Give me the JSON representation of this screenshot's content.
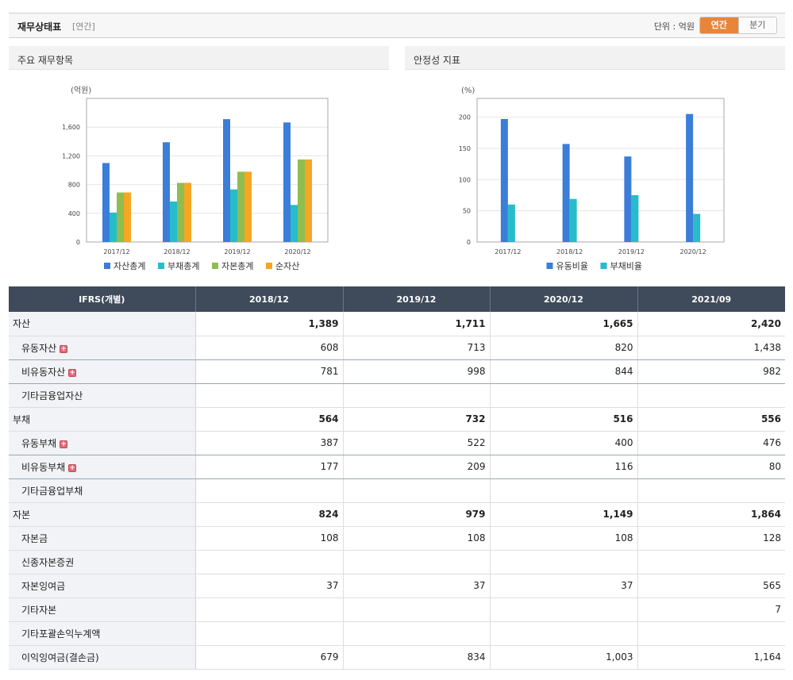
{
  "header": {
    "title": "재무상태표",
    "subtitle": "[연간]",
    "unit": "단위 : 억원",
    "toggle_annual": "연간",
    "toggle_quarter": "분기"
  },
  "charts": {
    "left_title": "주요 재무항목",
    "right_title": "안정성 지표"
  },
  "chart_data": [
    {
      "type": "bar",
      "title": "주요 재무항목",
      "ylabel": "(억원)",
      "categories": [
        "2017/12",
        "2018/12",
        "2019/12",
        "2020/12"
      ],
      "ylim": [
        0,
        2000
      ],
      "yticks": [
        0,
        400,
        800,
        1200,
        1600
      ],
      "ytick_labels": [
        "0",
        "400",
        "800",
        "1,200",
        "1,600"
      ],
      "grid": true,
      "legend": "bottom",
      "series": [
        {
          "name": "자산총계",
          "color": "#3b7dd8",
          "values": [
            1100,
            1389,
            1711,
            1665
          ]
        },
        {
          "name": "부채총계",
          "color": "#26bccc",
          "values": [
            410,
            564,
            732,
            516
          ]
        },
        {
          "name": "자본총계",
          "color": "#8fbd50",
          "values": [
            690,
            824,
            979,
            1149
          ]
        },
        {
          "name": "순자산",
          "color": "#f5a623",
          "values": [
            690,
            824,
            979,
            1149
          ]
        }
      ]
    },
    {
      "type": "bar",
      "title": "안정성 지표",
      "ylabel": "(%)",
      "categories": [
        "2017/12",
        "2018/12",
        "2019/12",
        "2020/12"
      ],
      "ylim": [
        0,
        230
      ],
      "yticks": [
        0,
        50,
        100,
        150,
        200
      ],
      "ytick_labels": [
        "0",
        "50",
        "100",
        "150",
        "200"
      ],
      "grid": true,
      "legend": "bottom",
      "series": [
        {
          "name": "유동비율",
          "color": "#3b7dd8",
          "values": [
            197,
            157,
            137,
            205
          ]
        },
        {
          "name": "부채비율",
          "color": "#26bccc",
          "values": [
            60,
            69,
            75,
            45
          ]
        }
      ]
    }
  ],
  "table": {
    "header": [
      "IFRS(개별)",
      "2018/12",
      "2019/12",
      "2020/12",
      "2021/09"
    ],
    "rows": [
      {
        "label": "자산",
        "values": [
          "1,389",
          "1,711",
          "1,665",
          "2,420"
        ],
        "main": true
      },
      {
        "label": "유동자산",
        "values": [
          "608",
          "713",
          "820",
          "1,438"
        ],
        "plus": true
      },
      {
        "label": "비유동자산",
        "values": [
          "781",
          "998",
          "844",
          "982"
        ],
        "plus": true
      },
      {
        "label": "기타금융업자산",
        "values": [
          "",
          "",
          "",
          ""
        ]
      },
      {
        "label": "부채",
        "values": [
          "564",
          "732",
          "516",
          "556"
        ],
        "main": true
      },
      {
        "label": "유동부채",
        "values": [
          "387",
          "522",
          "400",
          "476"
        ],
        "plus": true
      },
      {
        "label": "비유동부채",
        "values": [
          "177",
          "209",
          "116",
          "80"
        ],
        "plus": true
      },
      {
        "label": "기타금융업부채",
        "values": [
          "",
          "",
          "",
          ""
        ]
      },
      {
        "label": "자본",
        "values": [
          "824",
          "979",
          "1,149",
          "1,864"
        ],
        "main": true
      },
      {
        "label": "자본금",
        "values": [
          "108",
          "108",
          "108",
          "128"
        ]
      },
      {
        "label": "신종자본증권",
        "values": [
          "",
          "",
          "",
          ""
        ]
      },
      {
        "label": "자본잉여금",
        "values": [
          "37",
          "37",
          "37",
          "565"
        ]
      },
      {
        "label": "기타자본",
        "values": [
          "",
          "",
          "",
          "7"
        ]
      },
      {
        "label": "기타포괄손익누계액",
        "values": [
          "",
          "",
          "",
          ""
        ]
      },
      {
        "label": "이익잉여금(결손금)",
        "values": [
          "679",
          "834",
          "1,003",
          "1,164"
        ]
      }
    ]
  }
}
